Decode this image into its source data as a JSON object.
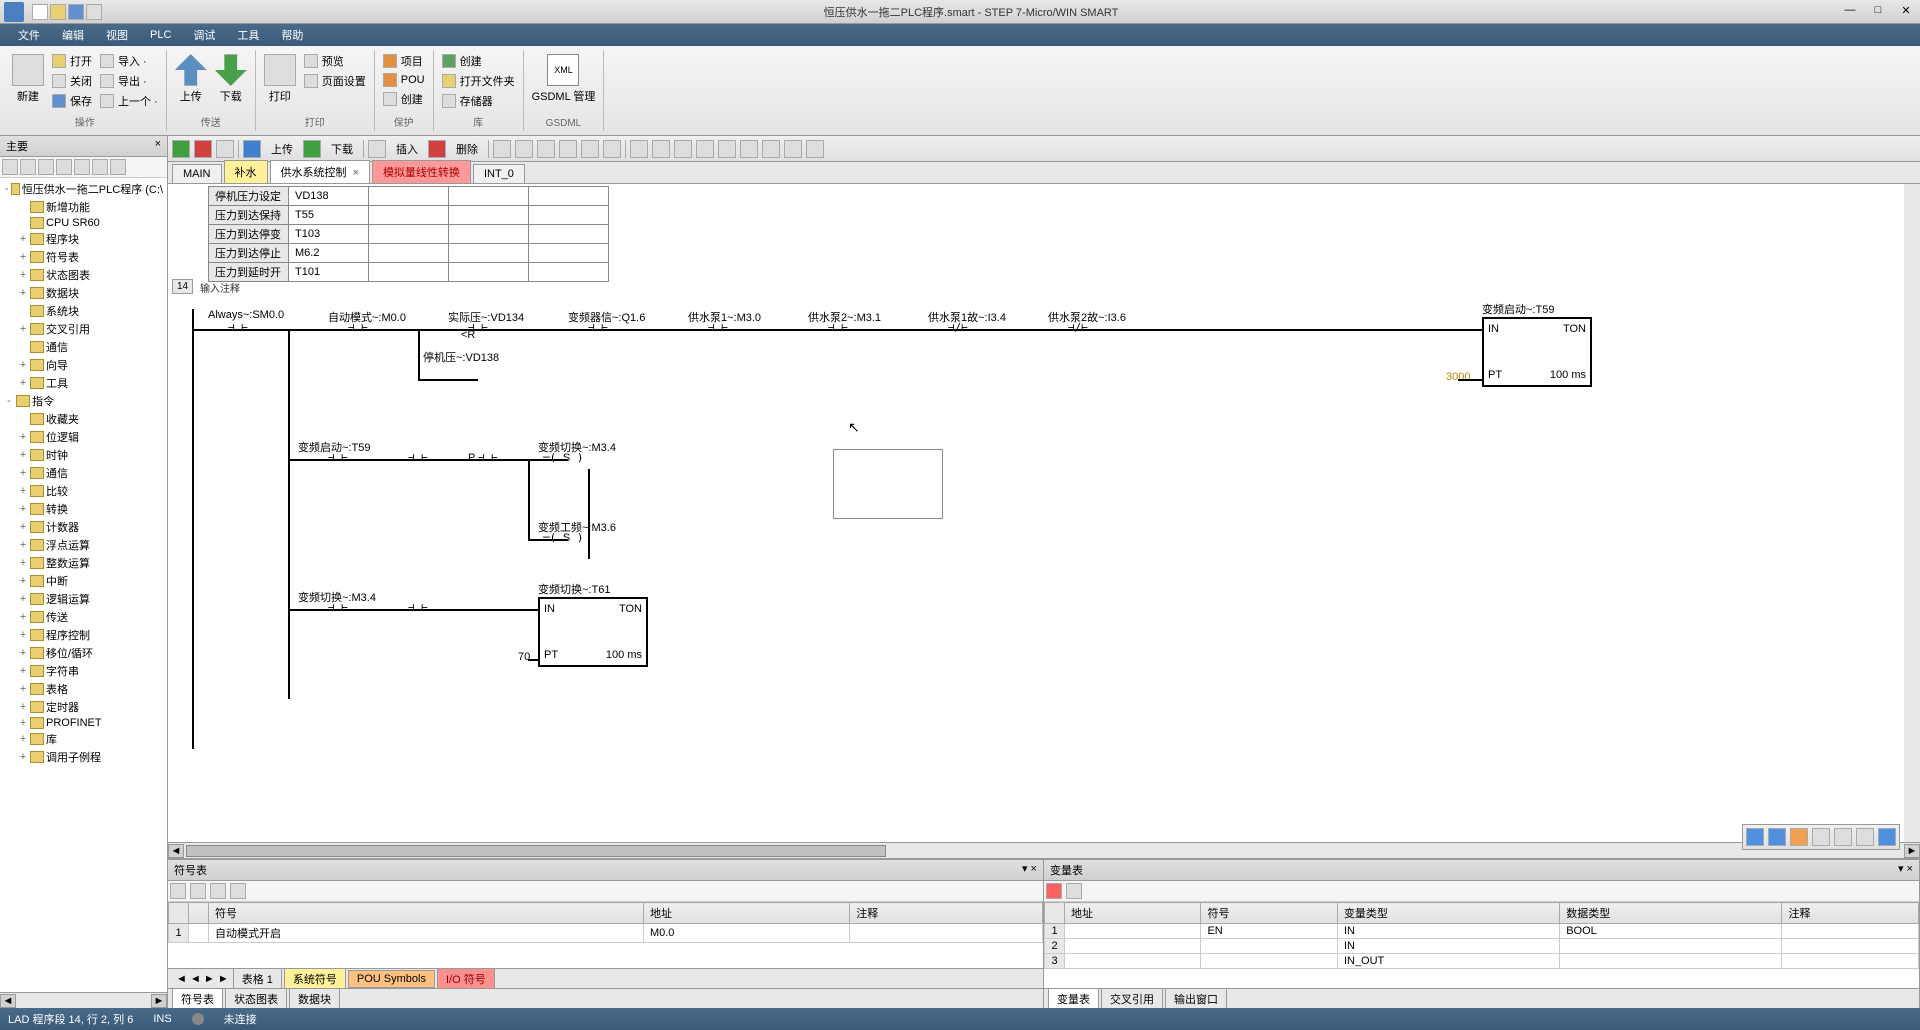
{
  "title": "恒压供水一拖二PLC程序.smart - STEP 7-Micro/WIN SMART",
  "menus": [
    "文件",
    "编辑",
    "视图",
    "PLC",
    "调试",
    "工具",
    "帮助"
  ],
  "ribbon": {
    "groups": [
      {
        "label": "操作",
        "big": [
          {
            "label": "新建"
          }
        ],
        "col": [
          {
            "label": "打开"
          },
          {
            "label": "关闭"
          },
          {
            "label": "保存"
          }
        ]
      },
      {
        "label": "",
        "col": [
          {
            "label": "导入 ·"
          },
          {
            "label": "导出 ·"
          },
          {
            "label": "上一个 ·"
          }
        ]
      },
      {
        "label": "传送",
        "big": [
          {
            "label": "上传",
            "cls": "blue"
          },
          {
            "label": "下载",
            "cls": "green"
          }
        ]
      },
      {
        "label": "打印",
        "big": [
          {
            "label": "打印"
          }
        ],
        "col": [
          {
            "label": "预览"
          },
          {
            "label": "页面设置"
          }
        ]
      },
      {
        "label": "保护",
        "col": [
          {
            "label": "项目"
          },
          {
            "label": "POU"
          },
          {
            "label": "创建"
          }
        ]
      },
      {
        "label": "库",
        "col": [
          {
            "label": "创建"
          },
          {
            "label": "打开文件夹"
          },
          {
            "label": "存储器"
          }
        ]
      },
      {
        "label": "GSDML",
        "big": [
          {
            "label": "GSDML 管理",
            "cls": "orange"
          }
        ]
      }
    ]
  },
  "left_panel_title": "主要",
  "tree": [
    {
      "lvl": 0,
      "exp": "-",
      "label": "恒压供水一拖二PLC程序 (C:\\"
    },
    {
      "lvl": 1,
      "exp": "",
      "label": "新增功能"
    },
    {
      "lvl": 1,
      "exp": "",
      "label": "CPU SR60"
    },
    {
      "lvl": 1,
      "exp": "+",
      "label": "程序块"
    },
    {
      "lvl": 1,
      "exp": "+",
      "label": "符号表"
    },
    {
      "lvl": 1,
      "exp": "+",
      "label": "状态图表"
    },
    {
      "lvl": 1,
      "exp": "+",
      "label": "数据块"
    },
    {
      "lvl": 1,
      "exp": "",
      "label": "系统块"
    },
    {
      "lvl": 1,
      "exp": "+",
      "label": "交叉引用"
    },
    {
      "lvl": 1,
      "exp": "",
      "label": "通信"
    },
    {
      "lvl": 1,
      "exp": "+",
      "label": "向导"
    },
    {
      "lvl": 1,
      "exp": "+",
      "label": "工具"
    },
    {
      "lvl": 0,
      "exp": "-",
      "label": "指令"
    },
    {
      "lvl": 1,
      "exp": "",
      "label": "收藏夹"
    },
    {
      "lvl": 1,
      "exp": "+",
      "label": "位逻辑"
    },
    {
      "lvl": 1,
      "exp": "+",
      "label": "时钟"
    },
    {
      "lvl": 1,
      "exp": "+",
      "label": "通信"
    },
    {
      "lvl": 1,
      "exp": "+",
      "label": "比较"
    },
    {
      "lvl": 1,
      "exp": "+",
      "label": "转换"
    },
    {
      "lvl": 1,
      "exp": "+",
      "label": "计数器"
    },
    {
      "lvl": 1,
      "exp": "+",
      "label": "浮点运算"
    },
    {
      "lvl": 1,
      "exp": "+",
      "label": "整数运算"
    },
    {
      "lvl": 1,
      "exp": "+",
      "label": "中断"
    },
    {
      "lvl": 1,
      "exp": "+",
      "label": "逻辑运算"
    },
    {
      "lvl": 1,
      "exp": "+",
      "label": "传送"
    },
    {
      "lvl": 1,
      "exp": "+",
      "label": "程序控制"
    },
    {
      "lvl": 1,
      "exp": "+",
      "label": "移位/循环"
    },
    {
      "lvl": 1,
      "exp": "+",
      "label": "字符串"
    },
    {
      "lvl": 1,
      "exp": "+",
      "label": "表格"
    },
    {
      "lvl": 1,
      "exp": "+",
      "label": "定时器"
    },
    {
      "lvl": 1,
      "exp": "+",
      "label": "PROFINET"
    },
    {
      "lvl": 1,
      "exp": "+",
      "label": "库"
    },
    {
      "lvl": 1,
      "exp": "+",
      "label": "调用子例程"
    }
  ],
  "editor_toolbar": {
    "labels": [
      "上传",
      "下载",
      "插入",
      "删除"
    ]
  },
  "tabs": [
    {
      "label": "MAIN",
      "cls": ""
    },
    {
      "label": "补水",
      "cls": "yellow"
    },
    {
      "label": "供水系统控制",
      "cls": "active",
      "close": "×"
    },
    {
      "label": "模拟量线性转换",
      "cls": "red"
    },
    {
      "label": "INT_0",
      "cls": ""
    }
  ],
  "var_table": [
    [
      "停机压力设定",
      "VD138",
      ""
    ],
    [
      "压力到达保持",
      "T55",
      ""
    ],
    [
      "压力到达停变",
      "T103",
      ""
    ],
    [
      "压力到达停止",
      "M6.2",
      ""
    ],
    [
      "压力到延时开",
      "T101",
      ""
    ]
  ],
  "network": {
    "num": "14",
    "comment": "输入注释",
    "row1_labels": [
      "Always~:SM0.0",
      "自动模式~:M0.0",
      "实际压~:VD134",
      "变频器信~:Q1.6",
      "供水泵1~:M3.0",
      "供水泵2~:M3.1",
      "供水泵1故~:I3.4",
      "供水泵2故~:I3.6"
    ],
    "timer1": {
      "label": "变频启动~:T59",
      "type": "TON",
      "in": "IN",
      "pt": "PT",
      "pt_val": "100 ms",
      "pt_in": "3000"
    },
    "compare": "<R",
    "row1b_label": "停机压~:VD138",
    "row2": {
      "label": "变频启动~:T59",
      "out": "变频切换~:M3.4",
      "coil": "S",
      "p": "P"
    },
    "row2b": {
      "out": "变频工频~:M3.6",
      "coil": "S"
    },
    "row3": {
      "label": "变频切换~:M3.4",
      "timer": {
        "label": "变频切换~:T61",
        "type": "TON",
        "in": "IN",
        "pt": "PT",
        "pt_val": "100 ms",
        "pt_in": "70"
      }
    }
  },
  "bottom_left": {
    "title": "符号表",
    "headers": [
      "",
      "",
      "符号",
      "地址",
      "注释"
    ],
    "row": [
      "1",
      "",
      "自动模式开启",
      "M0.0",
      ""
    ],
    "tabs": [
      "表格 1",
      "系统符号",
      "POU Symbols",
      "I/O 符号"
    ]
  },
  "bottom_right": {
    "title": "变量表",
    "headers": [
      "",
      "地址",
      "符号",
      "变量类型",
      "数据类型",
      "注释"
    ],
    "rows": [
      [
        "1",
        "",
        "EN",
        "IN",
        "BOOL",
        ""
      ],
      [
        "2",
        "",
        "",
        "IN",
        "",
        ""
      ],
      [
        "3",
        "",
        "",
        "IN_OUT",
        "",
        ""
      ]
    ],
    "tabs2": [
      "变量表",
      "交叉引用",
      "输出窗口"
    ]
  },
  "bottom_tabs2": [
    "符号表",
    "状态图表",
    "数据块"
  ],
  "status": {
    "left": "LAD 程序段 14, 行 2, 列 6",
    "ins": "INS",
    "conn": "未连接"
  },
  "colors": {
    "accent": "#4a6a8a"
  }
}
